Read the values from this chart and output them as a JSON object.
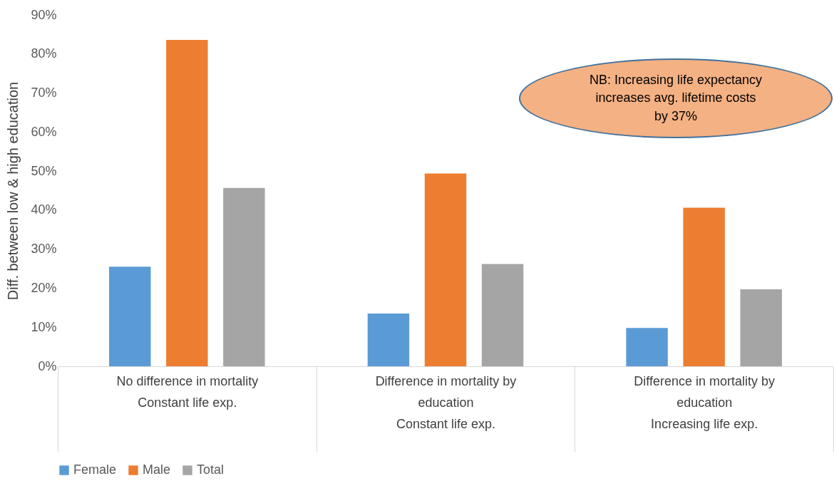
{
  "chart_data": {
    "type": "bar",
    "ylabel": "Diff. between low & high education",
    "categories": [
      "No difference in mortality\nConstant life exp.",
      "Difference in mortality by education\nConstant life exp.",
      "Difference in mortality by education\nIncreasing life exp."
    ],
    "series": [
      {
        "name": "Female",
        "color": "#5b9bd5",
        "values": [
          25.5,
          13.5,
          9.8
        ]
      },
      {
        "name": "Male",
        "color": "#ed7d31",
        "values": [
          83.6,
          49.4,
          40.6
        ]
      },
      {
        "name": "Total",
        "color": "#a5a5a5",
        "values": [
          45.7,
          26.2,
          19.7
        ]
      }
    ],
    "ylim": [
      0,
      90
    ],
    "yticks": [
      {
        "value": 0,
        "label": "0%"
      },
      {
        "value": 10,
        "label": "10%"
      },
      {
        "value": 20,
        "label": "20%"
      },
      {
        "value": 30,
        "label": "30%"
      },
      {
        "value": 40,
        "label": "40%"
      },
      {
        "value": 50,
        "label": "50%"
      },
      {
        "value": 60,
        "label": "60%"
      },
      {
        "value": 70,
        "label": "70%"
      },
      {
        "value": 80,
        "label": "80%"
      },
      {
        "value": 90,
        "label": "90%"
      }
    ],
    "grid": false,
    "legend": "bottom",
    "annotations": [
      "NB: Increasing life expectancy increases avg. lifetime costs by 37%"
    ]
  }
}
